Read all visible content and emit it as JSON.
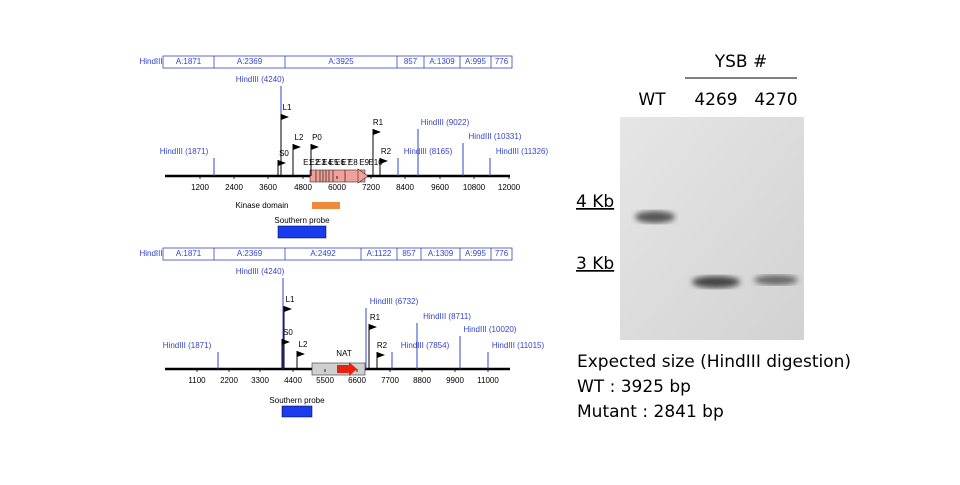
{
  "map_top": {
    "fragment_label": "HindIII",
    "fragments": [
      "A:1871",
      "A:2369",
      "A:3925",
      "857",
      "A:1309",
      "A:995",
      "776"
    ],
    "sites": [
      "HindIII (4240)",
      "HindIII (1871)",
      "HindIII (8165)",
      "HindIII (9022)",
      "HindIII (10331)",
      "HindIII (11326)"
    ],
    "primers": [
      "L1",
      "L2",
      "P0",
      "S0",
      "R1",
      "R2"
    ],
    "exons": [
      "E1",
      "E2",
      "E3",
      "E4",
      "E5",
      "E6",
      "E7",
      "E8",
      "E9",
      "E10"
    ],
    "axis_ticks": [
      1200,
      2400,
      3600,
      4800,
      6000,
      7200,
      8400,
      9600,
      10800,
      12000
    ],
    "domain_label": "Kinase domain",
    "probe_label": "Southern probe"
  },
  "map_bottom": {
    "fragment_label": "HindIII",
    "fragments": [
      "A:1871",
      "A:2369",
      "A:2492",
      "A:1122",
      "857",
      "A:1309",
      "A:995",
      "776"
    ],
    "sites": [
      "HindIII (4240)",
      "HindIII (6732)",
      "HindIII (1871)",
      "HindIII (7854)",
      "HindIII (8711)",
      "HindIII (10020)",
      "HindIII (11015)"
    ],
    "primers": [
      "L1",
      "S0",
      "L2",
      "R1",
      "R2"
    ],
    "marker_label": "NAT",
    "axis_ticks": [
      1100,
      2200,
      3300,
      4400,
      5500,
      6600,
      7700,
      8800,
      9900,
      11000
    ],
    "probe_label": "Southern probe"
  },
  "gel": {
    "group_label": "YSB #",
    "lanes": [
      "WT",
      "4269",
      "4270"
    ],
    "size_markers": [
      "4 Kb",
      "3 Kb"
    ],
    "caption": [
      "Expected size (HindIII digestion)",
      "WT : 3925 bp",
      "Mutant : 2841 bp"
    ]
  }
}
